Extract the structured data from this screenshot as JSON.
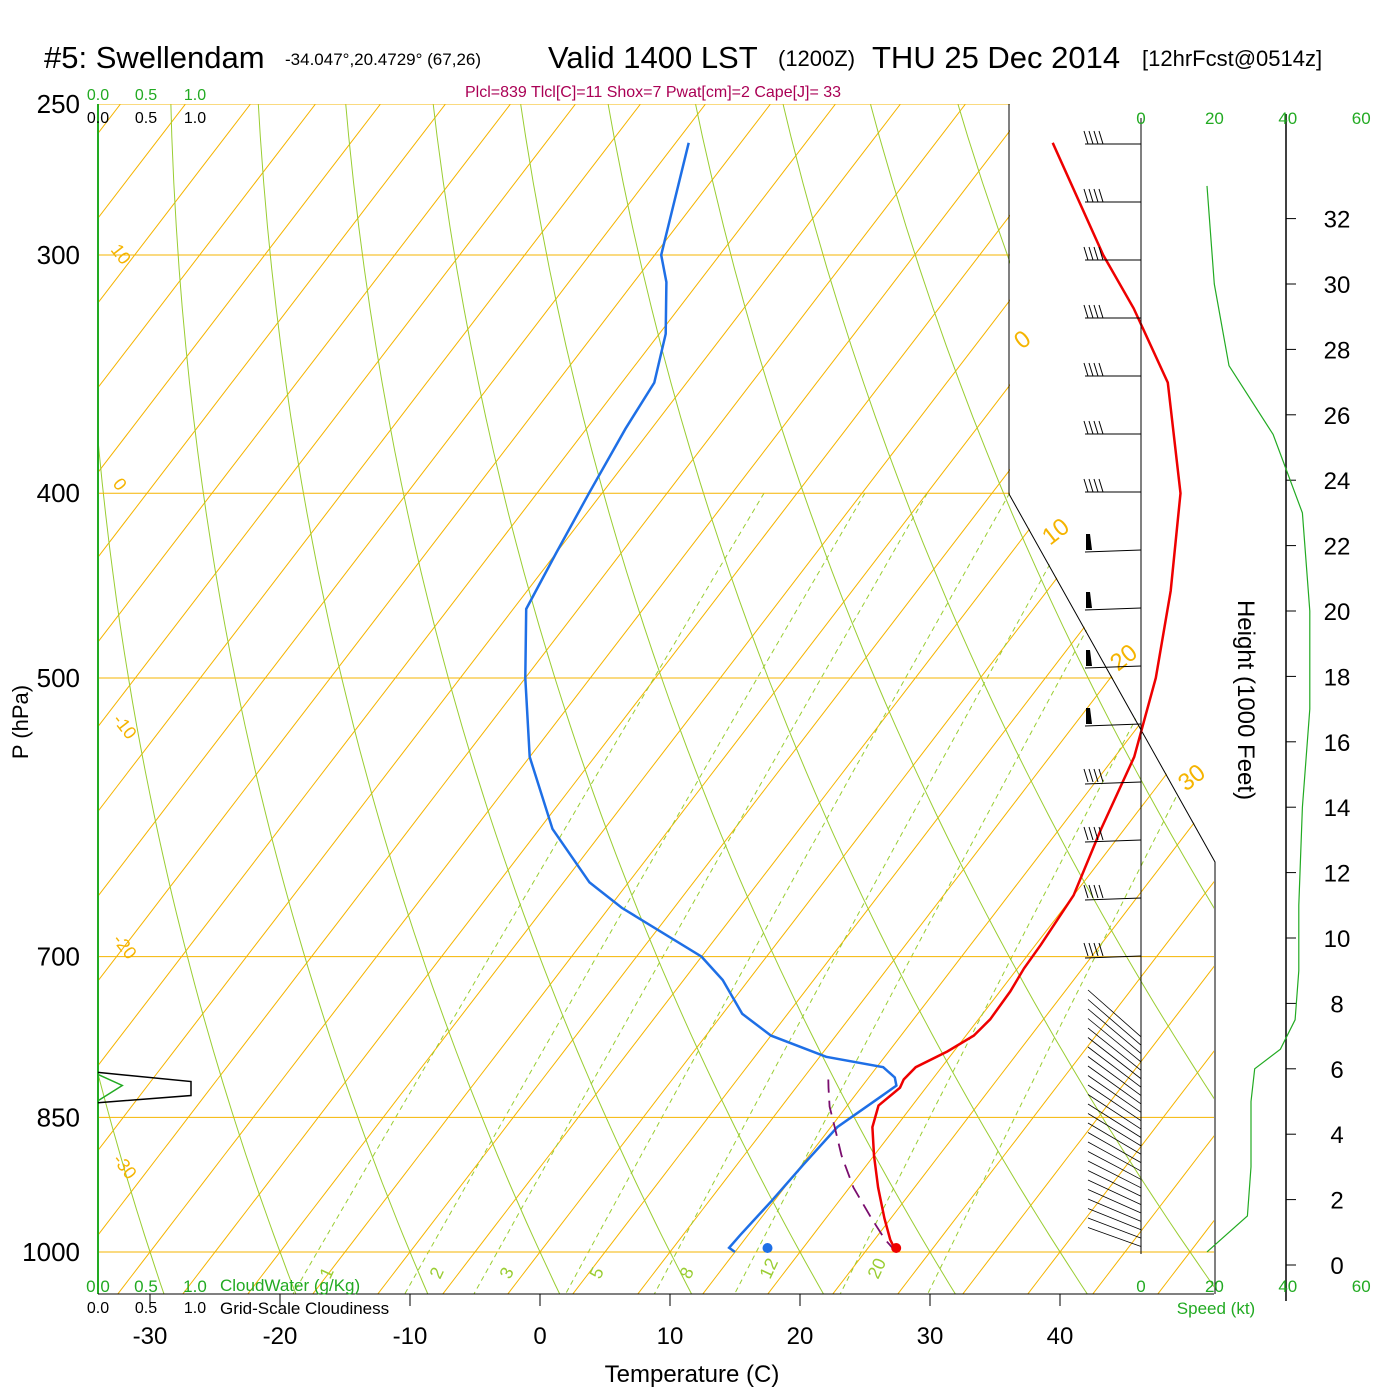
{
  "header": {
    "station": "#5: Swellendam",
    "coords": "-34.047°,20.4729° (67,26)",
    "valid": "Valid 1400 LST",
    "utc": "(1200Z)",
    "date": "THU 25 Dec 2014",
    "forecast": "[12hrFcst@0514z]"
  },
  "parcel_info": "Plcl=839 Tlcl[C]=11 Shox=7 Pwat[cm]=2 Cape[J]= 33",
  "colors": {
    "isotherm": "#f5b400",
    "dry_adiabat": "#9acd32",
    "mixing_ratio": "#9acd32",
    "temperature": "#ee0000",
    "dewpoint": "#1e6fe6",
    "parcel": "#7a0d6e",
    "info": "#aa0055",
    "green_label": "#22aa22"
  },
  "chart_data": {
    "type": "line",
    "chart_kind": "skew-T log-P sounding",
    "xlabel": "Temperature (C)",
    "ylabel": "P (hPa)",
    "x_ticks": [
      -30,
      -20,
      -10,
      0,
      10,
      20,
      30,
      40
    ],
    "pressure_levels": [
      250,
      300,
      400,
      500,
      700,
      850,
      1000
    ],
    "xlim": [
      -34,
      36
    ],
    "plim": [
      250,
      1000
    ],
    "log_pressure": true,
    "isotherm_labels": [
      "10",
      "0",
      "-10",
      "-20",
      "-30",
      "0",
      "10",
      "20",
      "30"
    ],
    "mixing_ratio_labels": [
      "1",
      "2",
      "3",
      "5",
      "8",
      "12",
      "20"
    ],
    "series": [
      {
        "name": "Temperature",
        "points": [
          {
            "p": 1000,
            "t": 27.4
          },
          {
            "p": 985,
            "t": 26.2
          },
          {
            "p": 960,
            "t": 24.5
          },
          {
            "p": 925,
            "t": 22.2
          },
          {
            "p": 890,
            "t": 20.0
          },
          {
            "p": 860,
            "t": 18.2
          },
          {
            "p": 838,
            "t": 17.4
          },
          {
            "p": 820,
            "t": 18.0
          },
          {
            "p": 812,
            "t": 17.8
          },
          {
            "p": 800,
            "t": 18.0
          },
          {
            "p": 785,
            "t": 19.5
          },
          {
            "p": 770,
            "t": 20.6
          },
          {
            "p": 755,
            "t": 20.9
          },
          {
            "p": 730,
            "t": 20.8
          },
          {
            "p": 710,
            "t": 20.5
          },
          {
            "p": 690,
            "t": 20.4
          },
          {
            "p": 650,
            "t": 20.0
          },
          {
            "p": 600,
            "t": 18.2
          },
          {
            "p": 550,
            "t": 16.5
          },
          {
            "p": 500,
            "t": 13.5
          },
          {
            "p": 450,
            "t": 9.5
          },
          {
            "p": 400,
            "t": 4.5
          },
          {
            "p": 350,
            "t": -3.0
          },
          {
            "p": 320,
            "t": -10.0
          },
          {
            "p": 300,
            "t": -15.5
          },
          {
            "p": 262,
            "t": -26.0
          }
        ]
      },
      {
        "name": "Dewpoint",
        "points": [
          {
            "p": 1000,
            "t": 15.0
          },
          {
            "p": 995,
            "t": 14.3
          },
          {
            "p": 980,
            "t": 14.4
          },
          {
            "p": 940,
            "t": 14.8
          },
          {
            "p": 900,
            "t": 15.1
          },
          {
            "p": 860,
            "t": 15.5
          },
          {
            "p": 830,
            "t": 17.0
          },
          {
            "p": 818,
            "t": 17.6
          },
          {
            "p": 810,
            "t": 17.0
          },
          {
            "p": 800,
            "t": 15.5
          },
          {
            "p": 790,
            "t": 10.5
          },
          {
            "p": 770,
            "t": 5.0
          },
          {
            "p": 750,
            "t": 1.5
          },
          {
            "p": 720,
            "t": -2.0
          },
          {
            "p": 700,
            "t": -5.0
          },
          {
            "p": 660,
            "t": -14.0
          },
          {
            "p": 640,
            "t": -18.0
          },
          {
            "p": 600,
            "t": -24.0
          },
          {
            "p": 550,
            "t": -30.0
          },
          {
            "p": 500,
            "t": -35.0
          },
          {
            "p": 460,
            "t": -39.0
          },
          {
            "p": 430,
            "t": -40.0
          },
          {
            "p": 400,
            "t": -41.0
          },
          {
            "p": 370,
            "t": -42.0
          },
          {
            "p": 350,
            "t": -42.5
          },
          {
            "p": 330,
            "t": -44.5
          },
          {
            "p": 310,
            "t": -47.5
          },
          {
            "p": 300,
            "t": -49.5
          },
          {
            "p": 262,
            "t": -54.0
          }
        ]
      },
      {
        "name": "Parcel",
        "points": [
          {
            "p": 1000,
            "t": 27.4
          },
          {
            "p": 985,
            "t": 25.8
          },
          {
            "p": 960,
            "t": 23.5
          },
          {
            "p": 925,
            "t": 20.3
          },
          {
            "p": 890,
            "t": 17.5
          },
          {
            "p": 860,
            "t": 15.3
          },
          {
            "p": 839,
            "t": 13.7
          },
          {
            "p": 820,
            "t": 12.5
          },
          {
            "p": 812,
            "t": 12.0
          }
        ]
      }
    ],
    "surface_dewpoint": {
      "p": 1000,
      "t": 17.5
    },
    "surface_temperature": {
      "p": 1000,
      "t": 27.4
    },
    "height_axis": {
      "label": "Height (1000 Feet)",
      "ticks": [
        0,
        2,
        4,
        6,
        8,
        10,
        12,
        14,
        16,
        18,
        20,
        22,
        24,
        26,
        28,
        30,
        32
      ]
    },
    "cloud_axis": {
      "top_green_ticks": [
        "0.0",
        "0.5",
        "1.0"
      ],
      "top_black_ticks": [
        "0.0",
        "0.5",
        "1.0"
      ],
      "bottom_green_label": "CloudWater (g/Kg)",
      "bottom_black_label": "Grid-Scale Cloudiness",
      "bottom_green_ticks": [
        "0.0",
        "0.5",
        "1.0"
      ],
      "bottom_black_ticks": [
        "0.0",
        "0.5",
        "1.0"
      ]
    },
    "wind_speed_axis": {
      "label": "Speed (kt)",
      "ticks": [
        "0",
        "20",
        "40",
        "60"
      ]
    },
    "wind_profile": [
      {
        "height_kft": 0.4,
        "speed_kt": 0
      },
      {
        "height_kft": 0.8,
        "speed_kt": 4
      },
      {
        "height_kft": 1.5,
        "speed_kt": 11
      },
      {
        "height_kft": 3,
        "speed_kt": 12
      },
      {
        "height_kft": 5,
        "speed_kt": 12
      },
      {
        "height_kft": 6,
        "speed_kt": 13
      },
      {
        "height_kft": 6.6,
        "speed_kt": 20
      },
      {
        "height_kft": 7.5,
        "speed_kt": 24
      },
      {
        "height_kft": 9,
        "speed_kt": 25
      },
      {
        "height_kft": 11,
        "speed_kt": 25
      },
      {
        "height_kft": 14,
        "speed_kt": 26
      },
      {
        "height_kft": 17,
        "speed_kt": 28
      },
      {
        "height_kft": 20,
        "speed_kt": 28
      },
      {
        "height_kft": 23,
        "speed_kt": 26
      },
      {
        "height_kft": 25.4,
        "speed_kt": 18
      },
      {
        "height_kft": 27.5,
        "speed_kt": 6
      },
      {
        "height_kft": 30,
        "speed_kt": 2
      },
      {
        "height_kft": 33,
        "speed_kt": 0
      }
    ],
    "cloud_layer": {
      "p_top": 805,
      "p_bottom": 835,
      "peak_cloudiness": 1.0,
      "peak_cloudwater": 0.2
    }
  }
}
